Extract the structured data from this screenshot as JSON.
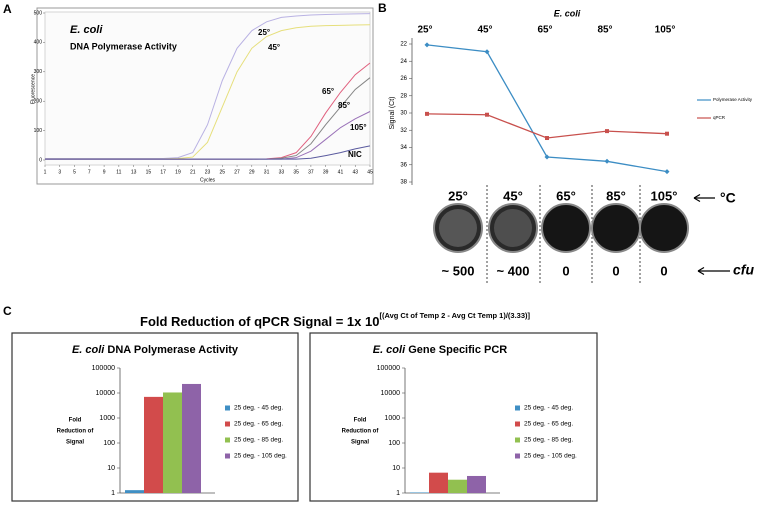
{
  "panel_labels": [
    "A",
    "B",
    "C"
  ],
  "formula": {
    "text": "Fold Reduction of qPCR Signal = 1x 10",
    "exponent": "[(Avg Ct of Temp 2 - Avg Ct Temp 1)/(3.33)]"
  },
  "plates": {
    "temperatures": [
      "25°",
      "45°",
      "65°",
      "85°",
      "105°"
    ],
    "unit": "°C",
    "cfu": [
      "~ 500",
      "~ 400",
      "0",
      "0",
      "0"
    ],
    "cfu_unit": "cfu"
  },
  "chart_data": [
    {
      "type": "line",
      "annotations": [
        "E. coli",
        "DNA Polymerase Activity"
      ],
      "x_label": "Cycles",
      "y_label": "Fluorescence",
      "x": [
        1,
        3,
        5,
        7,
        9,
        11,
        13,
        15,
        17,
        19,
        21,
        23,
        25,
        27,
        29,
        31,
        33,
        35,
        37,
        39,
        41,
        43,
        45
      ],
      "xlim": [
        1,
        45
      ],
      "xticks": [
        1,
        3,
        5,
        7,
        9,
        11,
        13,
        15,
        17,
        19,
        21,
        23,
        25,
        27,
        29,
        31,
        33,
        35,
        37,
        39,
        41,
        43,
        45
      ],
      "ylim": [
        -17,
        500
      ],
      "yticks": [
        0,
        100,
        200,
        300,
        400,
        500
      ],
      "series": [
        {
          "name": "25°",
          "color": "#b9b2e3",
          "values": [
            5,
            5,
            5,
            5,
            5,
            5,
            5,
            5,
            5,
            8,
            25,
            120,
            270,
            380,
            440,
            470,
            485,
            490,
            493,
            495,
            496,
            497,
            498
          ]
        },
        {
          "name": "45°",
          "color": "#e6df7c",
          "values": [
            4,
            4,
            4,
            4,
            4,
            4,
            4,
            4,
            4,
            5,
            10,
            60,
            180,
            300,
            380,
            420,
            440,
            450,
            455,
            457,
            458,
            459,
            460
          ]
        },
        {
          "name": "65°",
          "color": "#e0607e",
          "values": [
            3,
            3,
            3,
            3,
            3,
            3,
            3,
            3,
            3,
            3,
            3,
            3,
            3,
            3,
            3,
            4,
            8,
            25,
            80,
            160,
            230,
            290,
            330
          ]
        },
        {
          "name": "85°",
          "color": "#858585",
          "values": [
            3,
            3,
            3,
            3,
            3,
            3,
            3,
            3,
            3,
            3,
            3,
            3,
            3,
            3,
            3,
            3,
            6,
            15,
            55,
            120,
            180,
            240,
            280
          ]
        },
        {
          "name": "105°",
          "color": "#9a72b8",
          "values": [
            3,
            3,
            3,
            3,
            3,
            3,
            3,
            3,
            3,
            3,
            3,
            3,
            3,
            3,
            3,
            3,
            3,
            8,
            30,
            70,
            110,
            140,
            165
          ]
        },
        {
          "name": "NIC",
          "color": "#5a5a9e",
          "values": [
            3,
            3,
            3,
            3,
            3,
            3,
            3,
            3,
            3,
            3,
            3,
            3,
            3,
            3,
            3,
            3,
            3,
            3,
            6,
            15,
            25,
            38,
            48
          ]
        }
      ]
    },
    {
      "type": "line",
      "title": "E. coli",
      "y_label": "Signal (Ct)",
      "categories": [
        "25°",
        "45°",
        "65°",
        "85°",
        "105°"
      ],
      "ylim": [
        22,
        38
      ],
      "y_inverted": true,
      "yticks": [
        22,
        24,
        26,
        28,
        30,
        32,
        34,
        36,
        38
      ],
      "series": [
        {
          "name": "Polymerase Activity",
          "color": "#3c8dc4",
          "marker": "diamond",
          "values": [
            22.1,
            22.9,
            35.1,
            35.6,
            36.8
          ]
        },
        {
          "name": "qPCR",
          "color": "#c8504d",
          "marker": "square",
          "values": [
            30.1,
            30.2,
            32.9,
            32.1,
            32.4
          ]
        }
      ]
    },
    {
      "type": "bar",
      "title_italic": "E. coli",
      "title": "DNA Polymerase Activity",
      "y_label_lines": [
        "Fold",
        "Reduction of",
        "Signal"
      ],
      "log": true,
      "categories": [
        null
      ],
      "ylim": [
        1,
        100000
      ],
      "yticks": [
        1,
        10,
        100,
        1000,
        10000,
        100000
      ],
      "series": [
        {
          "name": "25 deg. - 45 deg.",
          "color": "#3f8fc4",
          "values": [
            1.3
          ]
        },
        {
          "name": "25 deg. - 65 deg.",
          "color": "#d24b4b",
          "values": [
            7000
          ]
        },
        {
          "name": "25 deg. - 85 deg.",
          "color": "#92c050",
          "values": [
            10500
          ]
        },
        {
          "name": "25 deg. - 105 deg.",
          "color": "#8e63a8",
          "values": [
            23000
          ]
        }
      ]
    },
    {
      "type": "bar",
      "title_italic": "E. coli",
      "title": "Gene Specific PCR",
      "y_label_lines": [
        "Fold",
        "Reduction of",
        "Signal"
      ],
      "log": true,
      "categories": [
        null
      ],
      "ylim": [
        1,
        100000
      ],
      "yticks": [
        1,
        10,
        100,
        1000,
        10000,
        100000
      ],
      "series": [
        {
          "name": "25 deg. - 45 deg.",
          "color": "#3f8fc4",
          "values": [
            1.05
          ]
        },
        {
          "name": "25 deg. - 65 deg.",
          "color": "#d24b4b",
          "values": [
            6.5
          ]
        },
        {
          "name": "25 deg. - 85 deg.",
          "color": "#92c050",
          "values": [
            3.4
          ]
        },
        {
          "name": "25 deg. - 105 deg.",
          "color": "#8e63a8",
          "values": [
            4.8
          ]
        }
      ]
    }
  ]
}
